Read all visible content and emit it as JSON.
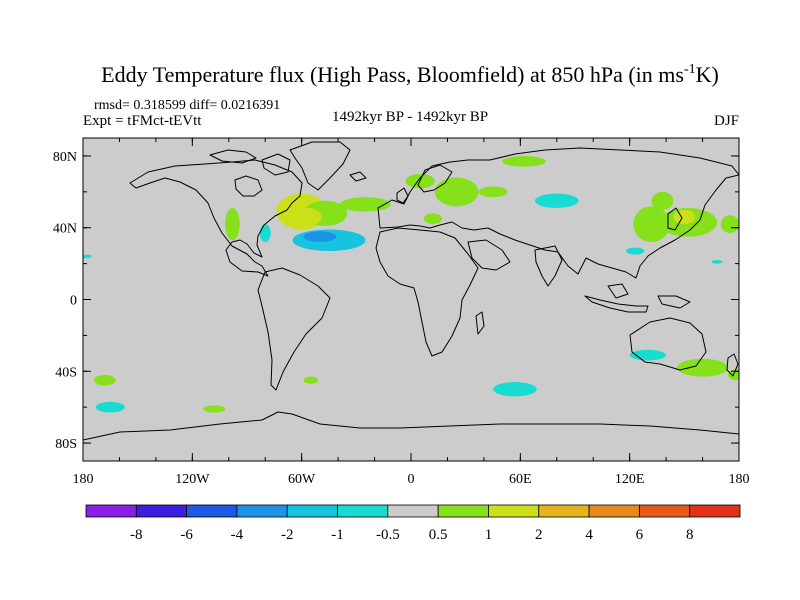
{
  "chart_data": {
    "type": "contour-map",
    "title": "Eddy Temperature flux (High Pass, Bloomfield) at 850 hPa (in ms",
    "title_sup": "-1",
    "title_end": "K)",
    "stats": "rmsd= 0.318599  diff= 0.0216391",
    "experiment": "Expt = tFMct-tEVtt",
    "period": "1492kyr BP - 1492kyr BP",
    "season": "DJF",
    "projection": "equirectangular",
    "lon_range": [
      -180,
      180
    ],
    "lat_range": [
      -90,
      90
    ],
    "x_ticks": [
      {
        "lon": -180,
        "label": "180"
      },
      {
        "lon": -120,
        "label": "120W"
      },
      {
        "lon": -60,
        "label": "60W"
      },
      {
        "lon": 0,
        "label": "0"
      },
      {
        "lon": 60,
        "label": "60E"
      },
      {
        "lon": 120,
        "label": "120E"
      },
      {
        "lon": 180,
        "label": "180"
      }
    ],
    "y_ticks": [
      {
        "lat": 80,
        "label": "80N"
      },
      {
        "lat": 40,
        "label": "40N"
      },
      {
        "lat": 0,
        "label": "0"
      },
      {
        "lat": -40,
        "label": "40S"
      },
      {
        "lat": -80,
        "label": "80S"
      }
    ],
    "colorbar": {
      "colors": [
        "#8a1fe6",
        "#3c1fe0",
        "#1c5ae6",
        "#1c94e6",
        "#16c4e0",
        "#18dcd2",
        "#cccccc",
        "#86e01a",
        "#cce01a",
        "#e6b41a",
        "#e68a1a",
        "#e65a1a",
        "#e0321a"
      ],
      "labels": [
        "-8",
        "-6",
        "-4",
        "-2",
        "-1",
        "-0.5",
        "0.5",
        "1",
        "2",
        "4",
        "6",
        "8"
      ]
    },
    "background_color": "#cccccc",
    "anomalies": [
      {
        "lon": -60,
        "lat": 49,
        "rlon": 14,
        "rlat": 10,
        "value": 1.2
      },
      {
        "lon": -47,
        "lat": 48,
        "rlon": 12,
        "rlat": 7,
        "value": 0.8
      },
      {
        "lon": -25,
        "lat": 53,
        "rlon": 14,
        "rlat": 4,
        "value": 0.8
      },
      {
        "lon": -57,
        "lat": 46,
        "rlon": 8,
        "rlat": 5,
        "value": 1.6
      },
      {
        "lon": -45,
        "lat": 33,
        "rlon": 20,
        "rlat": 6,
        "value": -1.2
      },
      {
        "lon": -50,
        "lat": 35,
        "rlon": 9,
        "rlat": 3,
        "value": -2.2
      },
      {
        "lon": -80,
        "lat": 37,
        "rlon": 3,
        "rlat": 5,
        "value": -1.0
      },
      {
        "lon": -98,
        "lat": 42,
        "rlon": 4,
        "rlat": 9,
        "value": 0.8
      },
      {
        "lon": 5,
        "lat": 66,
        "rlon": 8,
        "rlat": 4,
        "value": 0.8
      },
      {
        "lon": 25,
        "lat": 60,
        "rlon": 12,
        "rlat": 8,
        "value": 0.8
      },
      {
        "lon": 45,
        "lat": 60,
        "rlon": 8,
        "rlat": 3,
        "value": 0.8
      },
      {
        "lon": 62,
        "lat": 77,
        "rlon": 12,
        "rlat": 3,
        "value": 0.8
      },
      {
        "lon": 12,
        "lat": 45,
        "rlon": 5,
        "rlat": 3,
        "value": 0.8
      },
      {
        "lon": 80,
        "lat": 55,
        "rlon": 12,
        "rlat": 4,
        "value": -0.8
      },
      {
        "lon": 132,
        "lat": 42,
        "rlon": 10,
        "rlat": 10,
        "value": 0.8
      },
      {
        "lon": 152,
        "lat": 43,
        "rlon": 16,
        "rlat": 8,
        "value": 0.8
      },
      {
        "lon": 150,
        "lat": 46,
        "rlon": 6,
        "rlat": 4,
        "value": 1.5
      },
      {
        "lon": 175,
        "lat": 42,
        "rlon": 5,
        "rlat": 5,
        "value": 0.8
      },
      {
        "lon": 138,
        "lat": 55,
        "rlon": 6,
        "rlat": 5,
        "value": 0.8
      },
      {
        "lon": 123,
        "lat": 27,
        "rlon": 5,
        "rlat": 2,
        "value": -0.8
      },
      {
        "lon": 168,
        "lat": 21,
        "rlon": 3,
        "rlat": 1,
        "value": -0.8
      },
      {
        "lon": -178,
        "lat": 24,
        "rlon": 3,
        "rlat": 1,
        "value": -0.8
      },
      {
        "lon": 130,
        "lat": -31,
        "rlon": 10,
        "rlat": 3,
        "value": -0.8
      },
      {
        "lon": 160,
        "lat": -38,
        "rlon": 14,
        "rlat": 5,
        "value": 0.8
      },
      {
        "lon": 57,
        "lat": -50,
        "rlon": 12,
        "rlat": 4,
        "value": -0.8
      },
      {
        "lon": -165,
        "lat": -60,
        "rlon": 8,
        "rlat": 3,
        "value": -0.8
      },
      {
        "lon": -168,
        "lat": -45,
        "rlon": 6,
        "rlat": 3,
        "value": 0.8
      },
      {
        "lon": -108,
        "lat": -61,
        "rlon": 6,
        "rlat": 2,
        "value": 0.8
      },
      {
        "lon": -55,
        "lat": -45,
        "rlon": 4,
        "rlat": 2,
        "value": 0.8
      },
      {
        "lon": 178,
        "lat": -42,
        "rlon": 4,
        "rlat": 3,
        "value": 0.8
      }
    ]
  }
}
